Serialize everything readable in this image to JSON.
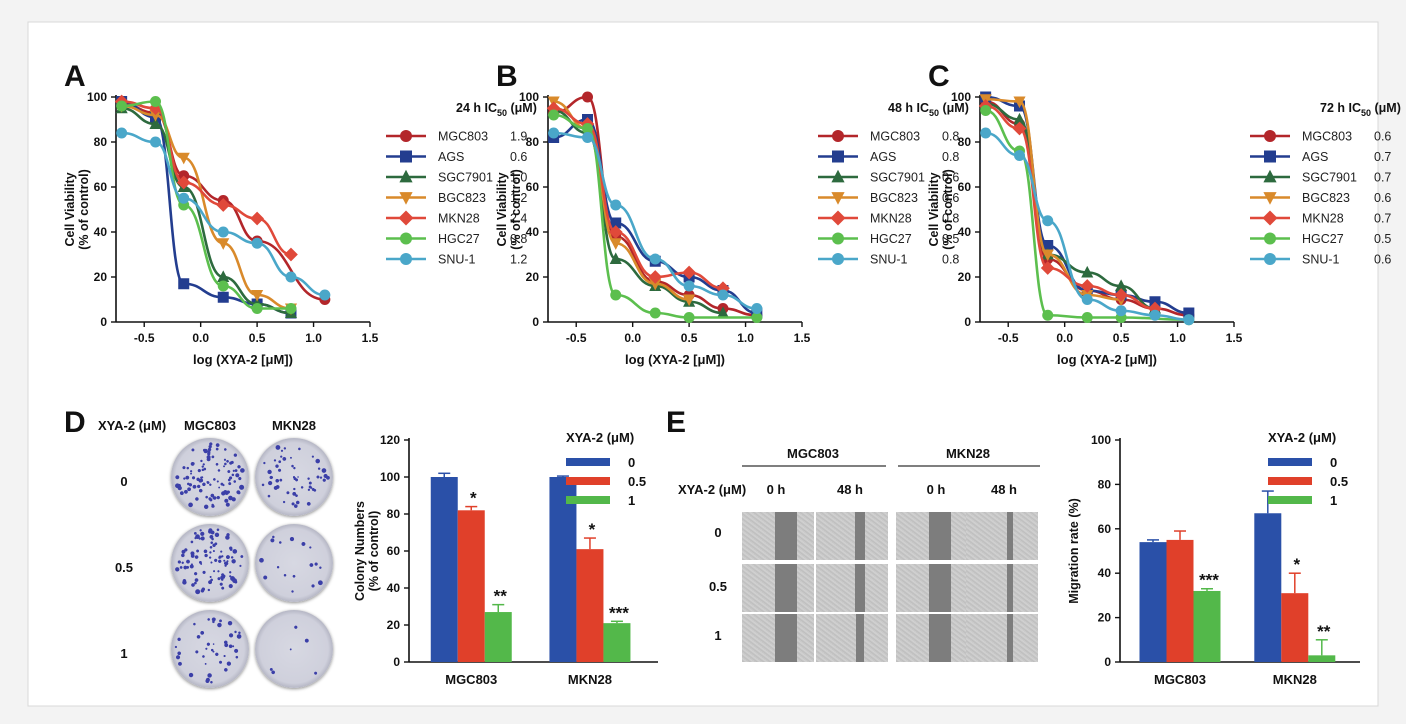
{
  "panels": {
    "A": "A",
    "B": "B",
    "C": "C",
    "D": "D",
    "E": "E"
  },
  "colors": {
    "MGC803": "#b3262a",
    "AGS": "#233d8f",
    "SGC7901": "#2d6a3e",
    "BGC823": "#d98a2b",
    "MKN28": "#e0493a",
    "HGC27": "#5cbf4e",
    "SNU-1": "#4aa7c9",
    "bar0": "#2a50a8",
    "bar05": "#e0402a",
    "bar1": "#53b84a"
  },
  "chart_data": [
    {
      "type": "line",
      "panel": "A",
      "xlabel": "log (XYA-2 [μM])",
      "ylabel": "Cell Viability",
      "ylabel2": "(% of control)",
      "xlim": [
        -0.75,
        1.5
      ],
      "ylim": [
        0,
        100
      ],
      "xticks": [
        "-0.5",
        "0.0",
        "0.5",
        "1.0",
        "1.5"
      ],
      "yticks": [
        "0",
        "20",
        "40",
        "60",
        "80",
        "100"
      ],
      "legend_header": "24 h",
      "legend_header_ic": "IC",
      "legend_header_sub": "50",
      "legend_header_unit": "(μM)",
      "series": [
        {
          "name": "MGC803",
          "ic50": "1.9",
          "marker": "circle",
          "x": [
            -0.7,
            -0.4,
            -0.15,
            0.2,
            0.5,
            1.1
          ],
          "y": [
            97,
            93,
            65,
            54,
            36,
            10
          ]
        },
        {
          "name": "AGS",
          "ic50": "0.6",
          "marker": "square",
          "x": [
            -0.7,
            -0.4,
            -0.15,
            0.2,
            0.5,
            0.8
          ],
          "y": [
            98,
            91,
            17,
            11,
            8,
            4
          ]
        },
        {
          "name": "SGC7901",
          "ic50": "1.0",
          "marker": "triangle",
          "x": [
            -0.7,
            -0.4,
            -0.15,
            0.2,
            0.5,
            0.8
          ],
          "y": [
            95,
            88,
            60,
            20,
            8,
            4
          ]
        },
        {
          "name": "BGC823",
          "ic50": "1.2",
          "marker": "triangle-down",
          "x": [
            -0.7,
            -0.4,
            -0.15,
            0.2,
            0.5,
            0.8
          ],
          "y": [
            96,
            92,
            73,
            35,
            12,
            6
          ]
        },
        {
          "name": "MKN28",
          "ic50": "2.4",
          "marker": "diamond",
          "x": [
            -0.7,
            -0.4,
            -0.15,
            0.2,
            0.5,
            0.8
          ],
          "y": [
            98,
            95,
            62,
            52,
            46,
            30
          ]
        },
        {
          "name": "HGC27",
          "ic50": "0.8",
          "marker": "circle",
          "x": [
            -0.7,
            -0.4,
            -0.15,
            0.2,
            0.5,
            0.8
          ],
          "y": [
            96,
            98,
            52,
            16,
            6,
            6
          ]
        },
        {
          "name": "SNU-1",
          "ic50": "1.2",
          "marker": "circle",
          "x": [
            -0.7,
            -0.4,
            -0.15,
            0.2,
            0.5,
            0.8,
            1.1
          ],
          "y": [
            84,
            80,
            55,
            40,
            35,
            20,
            12
          ]
        }
      ]
    },
    {
      "type": "line",
      "panel": "B",
      "xlabel": "log (XYA-2 [μM])",
      "ylabel": "Cell Viability",
      "ylabel2": "(% of control)",
      "xlim": [
        -0.75,
        1.5
      ],
      "ylim": [
        0,
        100
      ],
      "xticks": [
        "-0.5",
        "0.0",
        "0.5",
        "1.0",
        "1.5"
      ],
      "yticks": [
        "0",
        "20",
        "40",
        "60",
        "80",
        "100"
      ],
      "legend_header": "48 h",
      "legend_header_ic": "IC",
      "legend_header_sub": "50",
      "legend_header_unit": "(μM)",
      "series": [
        {
          "name": "MGC803",
          "ic50": "0.8",
          "marker": "circle",
          "x": [
            -0.7,
            -0.4,
            -0.15,
            0.2,
            0.5,
            0.8,
            1.1
          ],
          "y": [
            93,
            100,
            38,
            18,
            12,
            6,
            3
          ]
        },
        {
          "name": "AGS",
          "ic50": "0.8",
          "marker": "square",
          "x": [
            -0.7,
            -0.4,
            -0.15,
            0.2,
            0.5,
            0.8,
            1.1
          ],
          "y": [
            82,
            90,
            44,
            27,
            20,
            14,
            4
          ]
        },
        {
          "name": "SGC7901",
          "ic50": "0.6",
          "marker": "triangle",
          "x": [
            -0.7,
            -0.4,
            -0.15,
            0.2,
            0.5,
            0.8
          ],
          "y": [
            94,
            84,
            28,
            16,
            9,
            4
          ]
        },
        {
          "name": "BGC823",
          "ic50": "0.6",
          "marker": "triangle-down",
          "x": [
            -0.7,
            -0.4,
            -0.15,
            0.2,
            0.5
          ],
          "y": [
            98,
            86,
            35,
            17,
            10
          ]
        },
        {
          "name": "MKN28",
          "ic50": "0.8",
          "marker": "diamond",
          "x": [
            -0.7,
            -0.4,
            -0.15,
            0.2,
            0.5,
            0.8
          ],
          "y": [
            95,
            88,
            40,
            20,
            22,
            15
          ]
        },
        {
          "name": "HGC27",
          "ic50": "0.5",
          "marker": "circle",
          "x": [
            -0.7,
            -0.4,
            -0.15,
            0.2,
            0.5,
            1.1
          ],
          "y": [
            92,
            86,
            12,
            4,
            2,
            2
          ]
        },
        {
          "name": "SNU-1",
          "ic50": "0.8",
          "marker": "circle",
          "x": [
            -0.7,
            -0.4,
            -0.15,
            0.2,
            0.5,
            0.8,
            1.1
          ],
          "y": [
            84,
            82,
            52,
            28,
            16,
            12,
            6
          ]
        }
      ]
    },
    {
      "type": "line",
      "panel": "C",
      "xlabel": "log (XYA-2 [μM])",
      "ylabel": "Cell Viability",
      "ylabel2": "(% of control)",
      "xlim": [
        -0.75,
        1.5
      ],
      "ylim": [
        0,
        100
      ],
      "xticks": [
        "-0.5",
        "0.0",
        "0.5",
        "1.0",
        "1.5"
      ],
      "yticks": [
        "0",
        "20",
        "40",
        "60",
        "80",
        "100"
      ],
      "legend_header": "72 h",
      "legend_header_ic": "IC",
      "legend_header_sub": "50",
      "legend_header_unit": "(μM)",
      "series": [
        {
          "name": "MGC803",
          "ic50": "0.6",
          "marker": "circle",
          "x": [
            -0.7,
            -0.4,
            -0.15,
            0.2,
            0.5,
            0.8,
            1.1
          ],
          "y": [
            98,
            88,
            28,
            14,
            10,
            6,
            3
          ]
        },
        {
          "name": "AGS",
          "ic50": "0.7",
          "marker": "square",
          "x": [
            -0.7,
            -0.4,
            -0.15,
            0.2,
            0.5,
            0.8,
            1.1
          ],
          "y": [
            100,
            96,
            34,
            14,
            12,
            9,
            4
          ]
        },
        {
          "name": "SGC7901",
          "ic50": "0.7",
          "marker": "triangle",
          "x": [
            -0.7,
            -0.4,
            -0.15,
            0.2,
            0.5,
            0.8
          ],
          "y": [
            97,
            90,
            30,
            22,
            16,
            6
          ]
        },
        {
          "name": "BGC823",
          "ic50": "0.6",
          "marker": "triangle-down",
          "x": [
            -0.7,
            -0.4,
            -0.15,
            0.2,
            0.5
          ],
          "y": [
            99,
            98,
            30,
            12,
            10
          ]
        },
        {
          "name": "MKN28",
          "ic50": "0.7",
          "marker": "diamond",
          "x": [
            -0.7,
            -0.4,
            -0.15,
            0.2,
            0.5,
            0.8
          ],
          "y": [
            96,
            86,
            24,
            16,
            12,
            6
          ]
        },
        {
          "name": "HGC27",
          "ic50": "0.5",
          "marker": "circle",
          "x": [
            -0.7,
            -0.4,
            -0.15,
            0.2,
            0.5,
            1.1
          ],
          "y": [
            94,
            76,
            3,
            2,
            2,
            1
          ]
        },
        {
          "name": "SNU-1",
          "ic50": "0.6",
          "marker": "circle",
          "x": [
            -0.7,
            -0.4,
            -0.15,
            0.2,
            0.5,
            0.8,
            1.1
          ],
          "y": [
            84,
            74,
            45,
            10,
            5,
            3,
            1
          ]
        }
      ]
    },
    {
      "type": "bar",
      "panel": "D",
      "ylabel": "Colony Numbers",
      "ylabel2": "(% of control)",
      "categories": [
        "MGC803",
        "MKN28"
      ],
      "ylim": [
        0,
        120
      ],
      "yticks": [
        "0",
        "20",
        "40",
        "60",
        "80",
        "100",
        "120"
      ],
      "legend_title": "XYA-2 (μM)",
      "series": [
        {
          "name": "0",
          "values": [
            100,
            100
          ],
          "errors": [
            2,
            0.5
          ],
          "sig": [
            "",
            ""
          ]
        },
        {
          "name": "0.5",
          "values": [
            82,
            61
          ],
          "errors": [
            2,
            6
          ],
          "sig": [
            "*",
            "*"
          ]
        },
        {
          "name": "1",
          "values": [
            27,
            21
          ],
          "errors": [
            4,
            1
          ],
          "sig": [
            "**",
            "***"
          ]
        }
      ]
    },
    {
      "type": "bar",
      "panel": "E",
      "ylabel": "Migration rate (%)",
      "categories": [
        "MGC803",
        "MKN28"
      ],
      "ylim": [
        0,
        100
      ],
      "yticks": [
        "0",
        "20",
        "40",
        "60",
        "80",
        "100"
      ],
      "legend_title": "XYA-2 (μM)",
      "series": [
        {
          "name": "0",
          "values": [
            54,
            67
          ],
          "errors": [
            1,
            10
          ],
          "sig": [
            "",
            ""
          ]
        },
        {
          "name": "0.5",
          "values": [
            55,
            31
          ],
          "errors": [
            4,
            9
          ],
          "sig": [
            "",
            "*"
          ]
        },
        {
          "name": "1",
          "values": [
            32,
            3
          ],
          "errors": [
            1,
            7
          ],
          "sig": [
            "***",
            "**"
          ]
        }
      ]
    }
  ],
  "colony": {
    "header_label": "XYA-2 (μM)",
    "columns": [
      "MGC803",
      "MKN28"
    ],
    "rows": [
      "0",
      "0.5",
      "1"
    ],
    "density": [
      [
        0.9,
        0.45
      ],
      [
        0.85,
        0.12
      ],
      [
        0.35,
        0.02
      ]
    ]
  },
  "migration": {
    "groups": [
      "MGC803",
      "MKN28"
    ],
    "row_header": "XYA-2 (μM)",
    "times": [
      "0 h",
      "48 h",
      "0 h",
      "48 h"
    ],
    "rows": [
      "0",
      "0.5",
      "1"
    ],
    "gaps": [
      [
        0.3,
        0.14,
        0.3,
        0.08
      ],
      [
        0.3,
        0.14,
        0.3,
        0.09
      ],
      [
        0.3,
        0.1,
        0.3,
        0.08
      ]
    ]
  }
}
